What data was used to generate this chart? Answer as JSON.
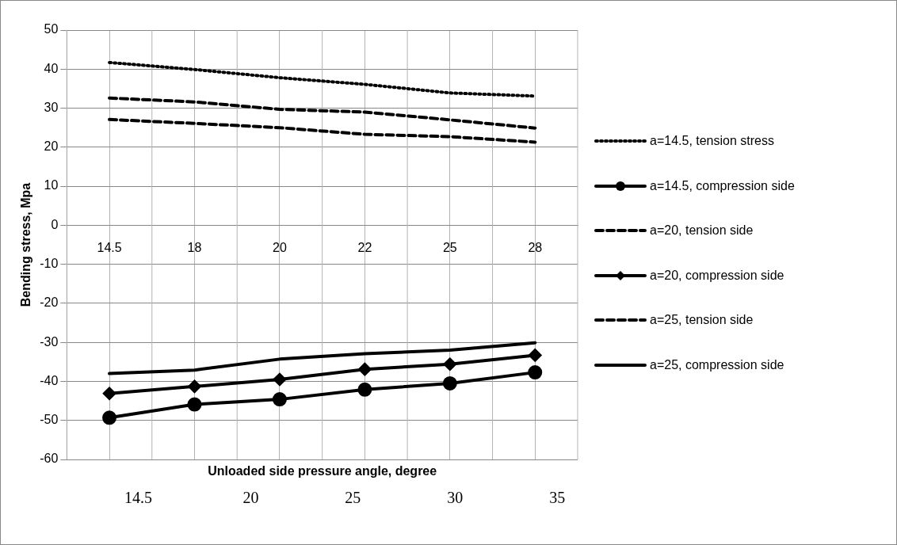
{
  "chart_data": {
    "type": "line",
    "xlabel": "Unloaded side pressure angle, degree",
    "ylabel": "Bending stress, Mpa",
    "categories": [
      "14.5",
      "18",
      "20",
      "22",
      "25",
      "28"
    ],
    "ylim": [
      -60,
      50
    ],
    "yticks": [
      -60,
      -50,
      -40,
      -30,
      -20,
      -10,
      0,
      10,
      20,
      30,
      40,
      50
    ],
    "x2lim": [
      11,
      36
    ],
    "x2ticks": [
      14.5,
      20,
      25,
      30,
      35
    ],
    "grid": true,
    "legend": "right",
    "series": [
      {
        "name": "a=14.5, tension stress",
        "color": "#000000",
        "line_style": "dotted",
        "marker": "none",
        "values": [
          41.7,
          39.9,
          37.8,
          36.1,
          33.9,
          33.1
        ]
      },
      {
        "name": "a=14.5, compression side",
        "color": "#000000",
        "line_style": "solid",
        "marker": "circle",
        "values": [
          -49.3,
          -45.9,
          -44.6,
          -42.1,
          -40.5,
          -37.7
        ]
      },
      {
        "name": "a=20, tension side",
        "color": "#000000",
        "line_style": "dashed",
        "marker": "none",
        "values": [
          32.6,
          31.6,
          29.7,
          29.0,
          27.0,
          24.9
        ]
      },
      {
        "name": "a=20, compression side",
        "color": "#000000",
        "line_style": "solid",
        "marker": "diamond",
        "values": [
          -43.1,
          -41.3,
          -39.5,
          -36.9,
          -35.6,
          -33.3
        ]
      },
      {
        "name": "a=25, tension side",
        "color": "#000000",
        "line_style": "dashed",
        "marker": "none",
        "values": [
          27.1,
          26.1,
          25.0,
          23.3,
          22.7,
          21.3
        ]
      },
      {
        "name": "a=25, compression side",
        "color": "#000000",
        "line_style": "solid",
        "marker": "none",
        "values": [
          -38.0,
          -37.1,
          -34.3,
          -32.9,
          -32.0,
          -30.1
        ]
      }
    ]
  }
}
